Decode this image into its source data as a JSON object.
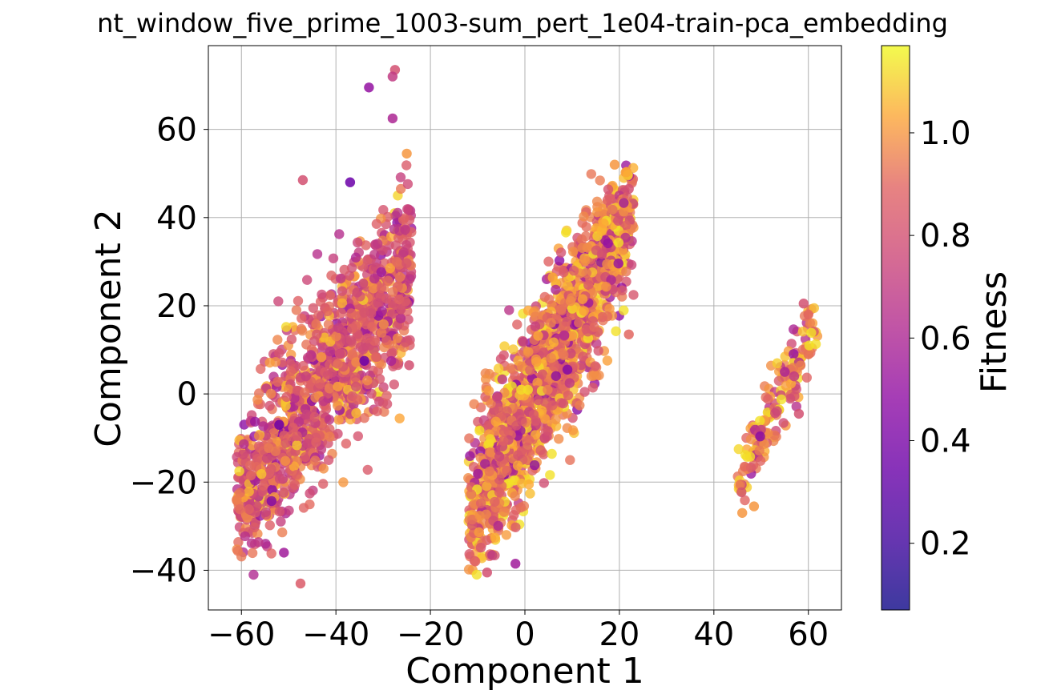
{
  "chart_data": {
    "type": "scatter",
    "title": "nt_window_five_prime_1003-sum_pert_1e04-train-pca_embedding",
    "xlabel": "Component 1",
    "ylabel": "Component 2",
    "xlim": [
      -67,
      67
    ],
    "ylim": [
      -49,
      79
    ],
    "x_ticks": [
      -60,
      -40,
      -20,
      0,
      20,
      40,
      60
    ],
    "x_tick_labels": [
      "−60",
      "−40",
      "−20",
      "0",
      "20",
      "40",
      "60"
    ],
    "y_ticks": [
      -40,
      -20,
      0,
      20,
      40,
      60
    ],
    "y_tick_labels": [
      "−40",
      "−20",
      "0",
      "20",
      "40",
      "60"
    ],
    "grid": true,
    "colormap": "plasma",
    "colorbar": {
      "label": "Fitness",
      "range": [
        0.07,
        1.17
      ],
      "ticks": [
        0.2,
        0.4,
        0.6,
        0.8,
        1.0
      ],
      "tick_labels": [
        "0.2",
        "0.4",
        "0.6",
        "0.8",
        "1.0"
      ]
    },
    "clusters": [
      {
        "name": "left",
        "count": 1300,
        "x_range": [
          -61,
          -24
        ],
        "y_range": [
          -43,
          74
        ],
        "slope": 1.55,
        "center_x": -40,
        "center_y": 5,
        "spread": 7.5,
        "fitness_mean": 0.86
      },
      {
        "name": "middle",
        "count": 1700,
        "x_range": [
          -12,
          23
        ],
        "y_range": [
          -41,
          52
        ],
        "slope": 2.25,
        "center_x": 5,
        "center_y": 6,
        "spread": 4.8,
        "fitness_mean": 0.95
      },
      {
        "name": "right",
        "count": 170,
        "x_range": [
          45,
          62
        ],
        "y_range": [
          -27,
          21
        ],
        "slope": 2.4,
        "center_x": 53,
        "center_y": -3,
        "spread": 2.4,
        "fitness_mean": 0.96
      }
    ],
    "highlight_points": [
      {
        "x": -27.5,
        "y": 73.5,
        "fitness": 0.8
      },
      {
        "x": -28,
        "y": 72,
        "fitness": 0.7
      },
      {
        "x": -33,
        "y": 69.5,
        "fitness": 0.5
      },
      {
        "x": -28,
        "y": 62.5,
        "fitness": 0.6
      },
      {
        "x": -47,
        "y": 48.5,
        "fitness": 0.8
      },
      {
        "x": -47.5,
        "y": -43,
        "fitness": 0.85
      },
      {
        "x": -61,
        "y": -24,
        "fitness": 0.95
      },
      {
        "x": -58,
        "y": -18.5,
        "fitness": 0.9
      },
      {
        "x": -25,
        "y": 54.5,
        "fitness": 1.0
      },
      {
        "x": -24.5,
        "y": 6.5,
        "fitness": 0.8
      },
      {
        "x": -34,
        "y": 7.5,
        "fitness": 0.35
      },
      {
        "x": -52,
        "y": -7,
        "fitness": 0.35
      },
      {
        "x": -37,
        "y": 48,
        "fitness": 0.35
      },
      {
        "x": -51,
        "y": -36,
        "fitness": 0.55
      },
      {
        "x": 19,
        "y": 52,
        "fitness": 1.0
      },
      {
        "x": 22,
        "y": 46.5,
        "fitness": 0.8
      },
      {
        "x": 22,
        "y": 13.5,
        "fitness": 0.9
      },
      {
        "x": -10.5,
        "y": -38,
        "fitness": 0.9
      },
      {
        "x": -8,
        "y": -40.5,
        "fitness": 0.8
      },
      {
        "x": 9,
        "y": 5.5,
        "fitness": 0.45
      },
      {
        "x": -2,
        "y": -38.5,
        "fitness": 0.55
      },
      {
        "x": 60,
        "y": 18,
        "fitness": 0.9
      },
      {
        "x": 59,
        "y": 20.5,
        "fitness": 0.8
      },
      {
        "x": 46,
        "y": -27,
        "fitness": 1.0
      },
      {
        "x": 48.5,
        "y": -25.5,
        "fitness": 1.0
      },
      {
        "x": 55,
        "y": 5,
        "fitness": 0.6
      },
      {
        "x": 57,
        "y": 4,
        "fitness": 0.7
      },
      {
        "x": 58,
        "y": -4.5,
        "fitness": 0.8
      }
    ]
  }
}
